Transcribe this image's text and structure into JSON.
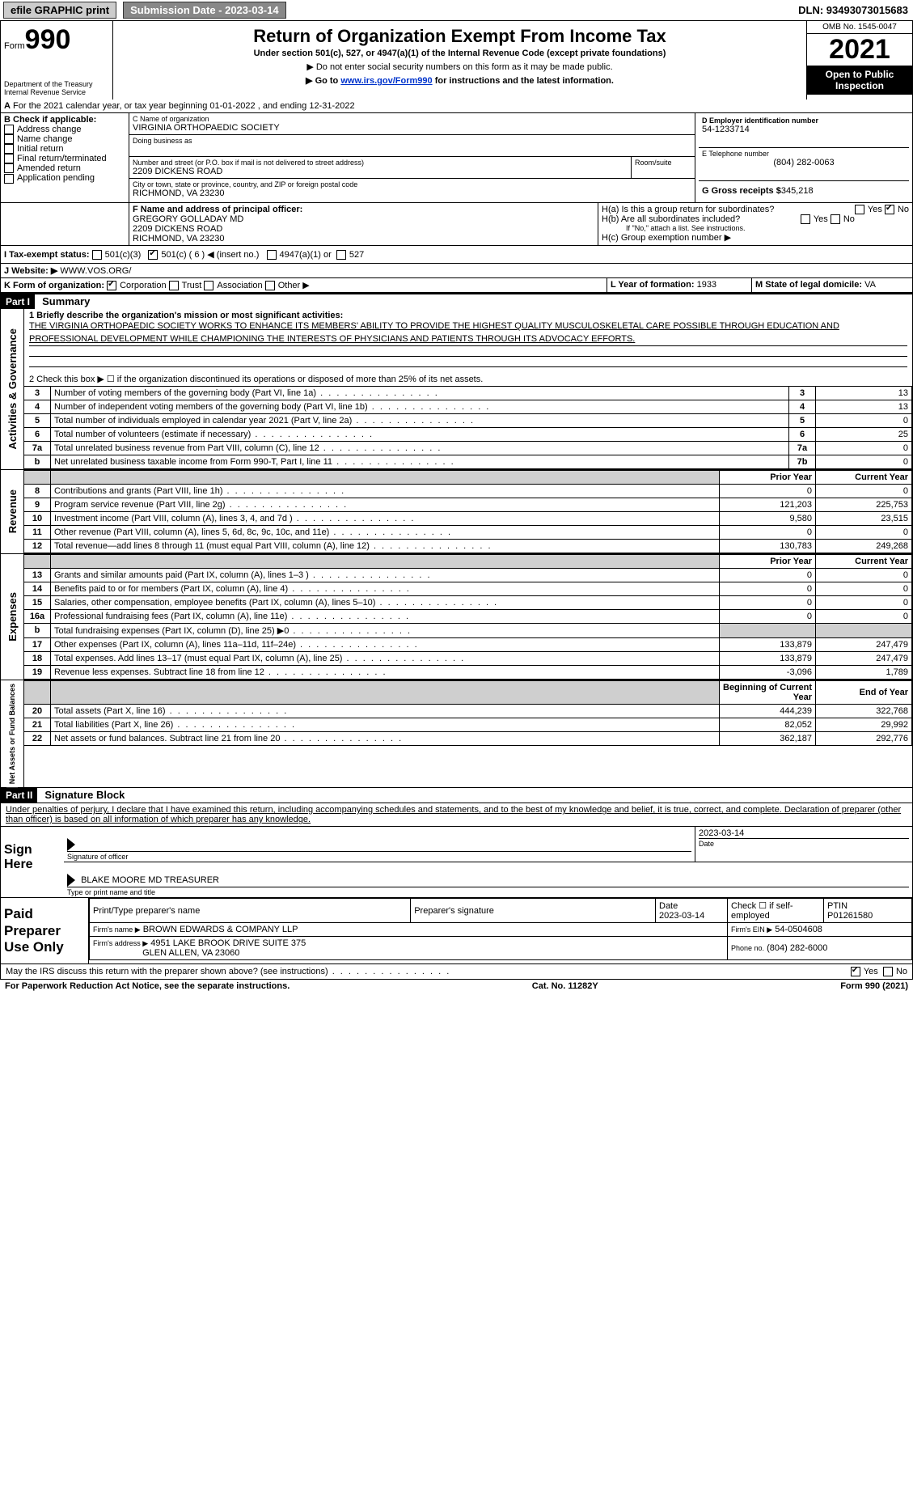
{
  "topbar": {
    "efile_label": "efile GRAPHIC print",
    "submission_label": "Submission Date - 2023-03-14",
    "dln_label": "DLN: 93493073015683"
  },
  "form": {
    "form_label": "Form",
    "form_number": "990",
    "dept": "Department of the Treasury",
    "irs": "Internal Revenue Service",
    "title": "Return of Organization Exempt From Income Tax",
    "subtitle": "Under section 501(c), 527, or 4947(a)(1) of the Internal Revenue Code (except private foundations)",
    "note1": "▶ Do not enter social security numbers on this form as it may be made public.",
    "note2_pre": "▶ Go to ",
    "note2_link": "www.irs.gov/Form990",
    "note2_post": " for instructions and the latest information.",
    "omb": "OMB No. 1545-0047",
    "year": "2021",
    "inspection": "Open to Public Inspection"
  },
  "tax_year": {
    "line_a": "For the 2021 calendar year, or tax year beginning 01-01-2022   , and ending 12-31-2022"
  },
  "checks": {
    "header": "B Check if applicable:",
    "items": [
      "Address change",
      "Name change",
      "Initial return",
      "Final return/terminated",
      "Amended return",
      "Application pending"
    ]
  },
  "org": {
    "name_label": "C Name of organization",
    "name": "VIRGINIA ORTHOPAEDIC SOCIETY",
    "dba_label": "Doing business as",
    "addr_label": "Number and street (or P.O. box if mail is not delivered to street address)",
    "room_label": "Room/suite",
    "addr": "2209 DICKENS ROAD",
    "city_label": "City or town, state or province, country, and ZIP or foreign postal code",
    "city": "RICHMOND, VA  23230",
    "ein_label": "D Employer identification number",
    "ein": "54-1233714",
    "phone_label": "E Telephone number",
    "phone": "(804) 282-0063",
    "gross_label": "G Gross receipts $",
    "gross": "345,218"
  },
  "officer": {
    "label": "F  Name and address of principal officer:",
    "name": "GREGORY GOLLADAY MD",
    "addr1": "2209 DICKENS ROAD",
    "addr2": "RICHMOND, VA  23230"
  },
  "group_return": {
    "ha_label": "H(a)  Is this a group return for subordinates?",
    "hb_label": "H(b)  Are all subordinates included?",
    "hb_note": "If \"No,\" attach a list. See instructions.",
    "hc_label": "H(c)  Group exemption number ▶"
  },
  "tax_status": {
    "label_i": "I   Tax-exempt status:",
    "c3": "501(c)(3)",
    "c_generic_num": "501(c) ( 6 ) ◀ (insert no.)",
    "a1": "4947(a)(1) or",
    "s527": "527"
  },
  "website": {
    "label": "J   Website: ▶",
    "value": "WWW.VOS.ORG/"
  },
  "form_org": {
    "label": "K Form of organization:",
    "corp": "Corporation",
    "trust": "Trust",
    "assoc": "Association",
    "other": "Other ▶"
  },
  "yof": {
    "label": "L Year of formation:",
    "value": "1933"
  },
  "domicile": {
    "label": "M State of legal domicile:",
    "value": "VA"
  },
  "partI": {
    "header": "Part I",
    "title": "Summary",
    "q1": "1  Briefly describe the organization's mission or most significant activities:",
    "mission": "THE VIRGINIA ORTHOPAEDIC SOCIETY WORKS TO ENHANCE ITS MEMBERS' ABILITY TO PROVIDE THE HIGHEST QUALITY MUSCULOSKELETAL CARE POSSIBLE THROUGH EDUCATION AND PROFESSIONAL DEVELOPMENT WHILE CHAMPIONING THE INTERESTS OF PHYSICIANS AND PATIENTS THROUGH ITS ADVOCACY EFFORTS.",
    "q2": "2   Check this box ▶ ☐  if the organization discontinued its operations or disposed of more than 25% of its net assets."
  },
  "side_labels": {
    "gov": "Activities & Governance",
    "rev": "Revenue",
    "exp": "Expenses",
    "net": "Net Assets or Fund Balances"
  },
  "gov_rows": [
    {
      "n": "3",
      "d": "Number of voting members of the governing body (Part VI, line 1a)",
      "box": "3",
      "v": "13"
    },
    {
      "n": "4",
      "d": "Number of independent voting members of the governing body (Part VI, line 1b)",
      "box": "4",
      "v": "13"
    },
    {
      "n": "5",
      "d": "Total number of individuals employed in calendar year 2021 (Part V, line 2a)",
      "box": "5",
      "v": "0"
    },
    {
      "n": "6",
      "d": "Total number of volunteers (estimate if necessary)",
      "box": "6",
      "v": "25"
    },
    {
      "n": "7a",
      "d": "Total unrelated business revenue from Part VIII, column (C), line 12",
      "box": "7a",
      "v": "0"
    },
    {
      "n": "b",
      "d": "Net unrelated business taxable income from Form 990-T, Part I, line 11",
      "box": "7b",
      "v": "0"
    }
  ],
  "two_col_header": {
    "prior": "Prior Year",
    "current": "Current Year"
  },
  "rev_rows": [
    {
      "n": "8",
      "d": "Contributions and grants (Part VIII, line 1h)",
      "p": "0",
      "c": "0"
    },
    {
      "n": "9",
      "d": "Program service revenue (Part VIII, line 2g)",
      "p": "121,203",
      "c": "225,753"
    },
    {
      "n": "10",
      "d": "Investment income (Part VIII, column (A), lines 3, 4, and 7d )",
      "p": "9,580",
      "c": "23,515"
    },
    {
      "n": "11",
      "d": "Other revenue (Part VIII, column (A), lines 5, 6d, 8c, 9c, 10c, and 11e)",
      "p": "0",
      "c": "0"
    },
    {
      "n": "12",
      "d": "Total revenue—add lines 8 through 11 (must equal Part VIII, column (A), line 12)",
      "p": "130,783",
      "c": "249,268"
    }
  ],
  "exp_rows": [
    {
      "n": "13",
      "d": "Grants and similar amounts paid (Part IX, column (A), lines 1–3 )",
      "p": "0",
      "c": "0"
    },
    {
      "n": "14",
      "d": "Benefits paid to or for members (Part IX, column (A), line 4)",
      "p": "0",
      "c": "0"
    },
    {
      "n": "15",
      "d": "Salaries, other compensation, employee benefits (Part IX, column (A), lines 5–10)",
      "p": "0",
      "c": "0"
    },
    {
      "n": "16a",
      "d": "Professional fundraising fees (Part IX, column (A), line 11e)",
      "p": "0",
      "c": "0"
    },
    {
      "n": "b",
      "d": "Total fundraising expenses (Part IX, column (D), line 25) ▶0",
      "p": "",
      "c": "",
      "gray": true
    },
    {
      "n": "17",
      "d": "Other expenses (Part IX, column (A), lines 11a–11d, 11f–24e)",
      "p": "133,879",
      "c": "247,479"
    },
    {
      "n": "18",
      "d": "Total expenses. Add lines 13–17 (must equal Part IX, column (A), line 25)",
      "p": "133,879",
      "c": "247,479"
    },
    {
      "n": "19",
      "d": "Revenue less expenses. Subtract line 18 from line 12",
      "p": "-3,096",
      "c": "1,789"
    }
  ],
  "net_header": {
    "prior": "Beginning of Current Year",
    "current": "End of Year"
  },
  "net_rows": [
    {
      "n": "20",
      "d": "Total assets (Part X, line 16)",
      "p": "444,239",
      "c": "322,768"
    },
    {
      "n": "21",
      "d": "Total liabilities (Part X, line 26)",
      "p": "82,052",
      "c": "29,992"
    },
    {
      "n": "22",
      "d": "Net assets or fund balances. Subtract line 21 from line 20",
      "p": "362,187",
      "c": "292,776"
    }
  ],
  "partII": {
    "header": "Part II",
    "title": "Signature Block",
    "decl": "Under penalties of perjury, I declare that I have examined this return, including accompanying schedules and statements, and to the best of my knowledge and belief, it is true, correct, and complete. Declaration of preparer (other than officer) is based on all information of which preparer has any knowledge."
  },
  "sign": {
    "sign_here": "Sign Here",
    "sig_officer": "Signature of officer",
    "date": "Date",
    "date_val": "2023-03-14",
    "name_title": "BLAKE MOORE MD TREASURER",
    "name_title_label": "Type or print name and title"
  },
  "preparer": {
    "title": "Paid Preparer Use Only",
    "h1": "Print/Type preparer's name",
    "h2": "Preparer's signature",
    "h3": "Date",
    "h4": "Check ☐ if self-employed",
    "h5": "PTIN",
    "date": "2023-03-14",
    "ptin": "P01261580",
    "firm_name_label": "Firm's name    ▶",
    "firm_name": "BROWN EDWARDS & COMPANY LLP",
    "firm_ein_label": "Firm's EIN ▶",
    "firm_ein": "54-0504608",
    "firm_addr_label": "Firm's address ▶",
    "firm_addr1": "4951 LAKE BROOK DRIVE SUITE 375",
    "firm_addr2": "GLEN ALLEN, VA  23060",
    "phone_label": "Phone no.",
    "phone": "(804) 282-6000"
  },
  "discuss": "May the IRS discuss this return with the preparer shown above? (see instructions)",
  "footer": {
    "left": "For Paperwork Reduction Act Notice, see the separate instructions.",
    "mid": "Cat. No. 11282Y",
    "right": "Form 990 (2021)"
  },
  "yes": "Yes",
  "no": "No"
}
